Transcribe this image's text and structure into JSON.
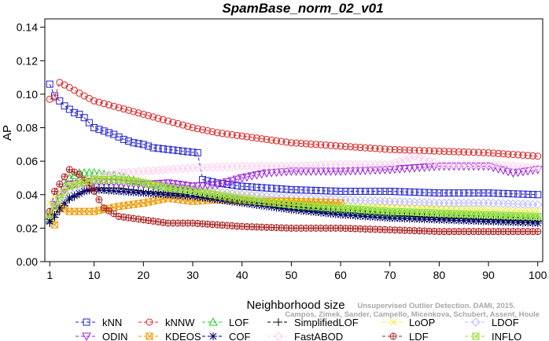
{
  "chart_data": {
    "type": "line",
    "title": "SpamBase_norm_02_v01",
    "xlabel": "Neighborhood size",
    "ylabel": "AP",
    "xlim": [
      0,
      101
    ],
    "ylim": [
      0,
      0.145
    ],
    "x_ticks": [
      1,
      10,
      20,
      30,
      40,
      50,
      60,
      70,
      80,
      90,
      100
    ],
    "y_ticks": [
      0.0,
      0.02,
      0.04,
      0.06,
      0.08,
      0.1,
      0.12,
      0.14
    ],
    "y_tick_labels": [
      "0.00",
      "0.02",
      "0.04",
      "0.06",
      "0.08",
      "0.10",
      "0.12",
      "0.14"
    ],
    "grid": false,
    "legend_position": "bottom",
    "watermark": [
      "Unsupervised Outlier Detection. DAMI, 2015.",
      "Campos, Zimek, Sander, Campello, Micenkova, Schubert, Assent, Houle"
    ],
    "series": [
      {
        "name": "kNN",
        "color": "#2222cc",
        "marker": "square",
        "dash": "4,3",
        "points": [
          [
            1,
            0.106
          ],
          [
            2,
            0.099
          ],
          [
            3,
            0.096
          ],
          [
            4,
            0.093
          ],
          [
            5,
            0.091
          ],
          [
            6,
            0.089
          ],
          [
            7,
            0.088
          ],
          [
            8,
            0.086
          ],
          [
            10,
            0.08
          ],
          [
            12,
            0.078
          ],
          [
            14,
            0.076
          ],
          [
            16,
            0.073
          ],
          [
            18,
            0.071
          ],
          [
            20,
            0.07
          ],
          [
            22,
            0.068
          ],
          [
            25,
            0.067
          ],
          [
            28,
            0.066
          ],
          [
            31,
            0.065
          ],
          [
            32,
            0.049
          ],
          [
            35,
            0.047
          ],
          [
            40,
            0.045
          ],
          [
            45,
            0.044
          ],
          [
            50,
            0.043
          ],
          [
            60,
            0.042
          ],
          [
            70,
            0.042
          ],
          [
            80,
            0.041
          ],
          [
            90,
            0.041
          ],
          [
            100,
            0.04
          ]
        ]
      },
      {
        "name": "kNNW",
        "color": "#dd2222",
        "marker": "circle",
        "dash": "4,3",
        "points": [
          [
            1,
            0.097
          ],
          [
            2,
            0.098
          ],
          [
            3,
            0.107
          ],
          [
            5,
            0.104
          ],
          [
            8,
            0.099
          ],
          [
            10,
            0.096
          ],
          [
            15,
            0.092
          ],
          [
            20,
            0.088
          ],
          [
            25,
            0.084
          ],
          [
            30,
            0.08
          ],
          [
            35,
            0.077
          ],
          [
            40,
            0.075
          ],
          [
            45,
            0.073
          ],
          [
            50,
            0.071
          ],
          [
            60,
            0.069
          ],
          [
            70,
            0.067
          ],
          [
            80,
            0.066
          ],
          [
            90,
            0.065
          ],
          [
            100,
            0.063
          ]
        ]
      },
      {
        "name": "LOF",
        "color": "#22cc22",
        "marker": "triangle",
        "dash": "4,3",
        "points": [
          [
            1,
            0.027
          ],
          [
            3,
            0.04
          ],
          [
            5,
            0.05
          ],
          [
            7,
            0.053
          ],
          [
            10,
            0.053
          ],
          [
            15,
            0.051
          ],
          [
            20,
            0.047
          ],
          [
            25,
            0.044
          ],
          [
            30,
            0.042
          ],
          [
            40,
            0.037
          ],
          [
            50,
            0.033
          ],
          [
            60,
            0.031
          ],
          [
            70,
            0.029
          ],
          [
            80,
            0.028
          ],
          [
            90,
            0.027
          ],
          [
            100,
            0.026
          ]
        ]
      },
      {
        "name": "SimplifiedLOF",
        "color": "#000000",
        "marker": "plus",
        "dash": "4,3",
        "points": [
          [
            1,
            0.023
          ],
          [
            3,
            0.03
          ],
          [
            5,
            0.037
          ],
          [
            8,
            0.042
          ],
          [
            10,
            0.044
          ],
          [
            15,
            0.044
          ],
          [
            20,
            0.042
          ],
          [
            25,
            0.041
          ],
          [
            30,
            0.04
          ],
          [
            40,
            0.036
          ],
          [
            50,
            0.033
          ],
          [
            60,
            0.03
          ],
          [
            70,
            0.028
          ],
          [
            80,
            0.026
          ],
          [
            90,
            0.025
          ],
          [
            100,
            0.024
          ]
        ]
      },
      {
        "name": "LoOP",
        "color": "#eeee33",
        "marker": "x",
        "dash": "4,3",
        "points": [
          [
            1,
            0.035
          ],
          [
            3,
            0.042
          ],
          [
            5,
            0.046
          ],
          [
            10,
            0.05
          ],
          [
            15,
            0.05
          ],
          [
            20,
            0.048
          ],
          [
            25,
            0.045
          ],
          [
            30,
            0.043
          ],
          [
            40,
            0.04
          ],
          [
            50,
            0.037
          ],
          [
            60,
            0.035
          ],
          [
            70,
            0.033
          ],
          [
            80,
            0.032
          ],
          [
            90,
            0.031
          ],
          [
            100,
            0.03
          ]
        ]
      },
      {
        "name": "LDOF",
        "color": "#bbbbff",
        "marker": "diamond",
        "dash": "4,3",
        "points": [
          [
            1,
            0.03
          ],
          [
            3,
            0.038
          ],
          [
            5,
            0.043
          ],
          [
            10,
            0.047
          ],
          [
            15,
            0.048
          ],
          [
            20,
            0.047
          ],
          [
            25,
            0.045
          ],
          [
            30,
            0.043
          ],
          [
            40,
            0.04
          ],
          [
            50,
            0.038
          ],
          [
            60,
            0.037
          ],
          [
            70,
            0.036
          ],
          [
            80,
            0.035
          ],
          [
            90,
            0.035
          ],
          [
            100,
            0.034
          ]
        ]
      },
      {
        "name": "ODIN",
        "color": "#9922dd",
        "marker": "triangle-down",
        "dash": "4,3",
        "points": [
          [
            1,
            0.028
          ],
          [
            3,
            0.04
          ],
          [
            5,
            0.046
          ],
          [
            10,
            0.048
          ],
          [
            15,
            0.047
          ],
          [
            20,
            0.046
          ],
          [
            25,
            0.047
          ],
          [
            30,
            0.045
          ],
          [
            35,
            0.046
          ],
          [
            40,
            0.05
          ],
          [
            45,
            0.053
          ],
          [
            50,
            0.054
          ],
          [
            60,
            0.054
          ],
          [
            70,
            0.055
          ],
          [
            75,
            0.056
          ],
          [
            80,
            0.057
          ],
          [
            90,
            0.057
          ],
          [
            95,
            0.053
          ],
          [
            100,
            0.055
          ]
        ]
      },
      {
        "name": "KDEOS",
        "color": "#ee9900",
        "marker": "square-x",
        "dash": "4,3",
        "points": [
          [
            1,
            0.028
          ],
          [
            2,
            0.022
          ],
          [
            3,
            0.033
          ],
          [
            5,
            0.03
          ],
          [
            10,
            0.03
          ],
          [
            15,
            0.033
          ],
          [
            20,
            0.035
          ],
          [
            25,
            0.038
          ],
          [
            30,
            0.036
          ],
          [
            35,
            0.037
          ],
          [
            40,
            0.036
          ],
          [
            50,
            0.036
          ],
          [
            60,
            0.035
          ]
        ]
      },
      {
        "name": "COF",
        "color": "#000066",
        "marker": "star",
        "dash": "4,3",
        "points": [
          [
            1,
            0.024
          ],
          [
            3,
            0.032
          ],
          [
            5,
            0.038
          ],
          [
            8,
            0.042
          ],
          [
            10,
            0.043
          ],
          [
            15,
            0.042
          ],
          [
            20,
            0.041
          ],
          [
            25,
            0.04
          ],
          [
            30,
            0.039
          ],
          [
            40,
            0.035
          ],
          [
            50,
            0.031
          ],
          [
            60,
            0.028
          ],
          [
            70,
            0.026
          ],
          [
            80,
            0.025
          ],
          [
            90,
            0.024
          ],
          [
            100,
            0.023
          ]
        ]
      },
      {
        "name": "FastABOD",
        "color": "#ffccee",
        "marker": "diamond",
        "dash": "4,3",
        "points": [
          [
            1,
            0.03
          ],
          [
            3,
            0.04
          ],
          [
            5,
            0.045
          ],
          [
            10,
            0.05
          ],
          [
            15,
            0.053
          ],
          [
            20,
            0.054
          ],
          [
            25,
            0.055
          ],
          [
            30,
            0.056
          ],
          [
            40,
            0.057
          ],
          [
            50,
            0.057
          ],
          [
            60,
            0.058
          ],
          [
            70,
            0.058
          ],
          [
            75,
            0.063
          ],
          [
            80,
            0.058
          ],
          [
            90,
            0.058
          ],
          [
            100,
            0.056
          ]
        ]
      },
      {
        "name": "LDF",
        "color": "#aa2222",
        "marker": "circle-plus",
        "dash": "4,3",
        "points": [
          [
            1,
            0.03
          ],
          [
            2,
            0.042
          ],
          [
            5,
            0.055
          ],
          [
            7,
            0.052
          ],
          [
            10,
            0.042
          ],
          [
            12,
            0.032
          ],
          [
            15,
            0.027
          ],
          [
            20,
            0.025
          ],
          [
            25,
            0.023
          ],
          [
            30,
            0.023
          ],
          [
            40,
            0.021
          ],
          [
            50,
            0.02
          ],
          [
            60,
            0.02
          ],
          [
            70,
            0.019
          ],
          [
            80,
            0.018
          ],
          [
            90,
            0.018
          ],
          [
            100,
            0.018
          ]
        ]
      },
      {
        "name": "INFLO",
        "color": "#99dd33",
        "marker": "square-x",
        "dash": "4,3",
        "points": [
          [
            1,
            0.028
          ],
          [
            3,
            0.038
          ],
          [
            5,
            0.045
          ],
          [
            10,
            0.049
          ],
          [
            15,
            0.049
          ],
          [
            20,
            0.047
          ],
          [
            25,
            0.044
          ],
          [
            30,
            0.042
          ],
          [
            40,
            0.037
          ],
          [
            50,
            0.034
          ],
          [
            60,
            0.032
          ],
          [
            70,
            0.03
          ],
          [
            80,
            0.029
          ],
          [
            90,
            0.028
          ],
          [
            100,
            0.027
          ]
        ]
      }
    ],
    "legend_rows": [
      [
        "kNN",
        "kNNW",
        "LOF",
        "SimplifiedLOF",
        "LoOP",
        "LDOF"
      ],
      [
        "ODIN",
        "KDEOS",
        "COF",
        "FastABOD",
        "LDF",
        "INFLO"
      ]
    ]
  }
}
